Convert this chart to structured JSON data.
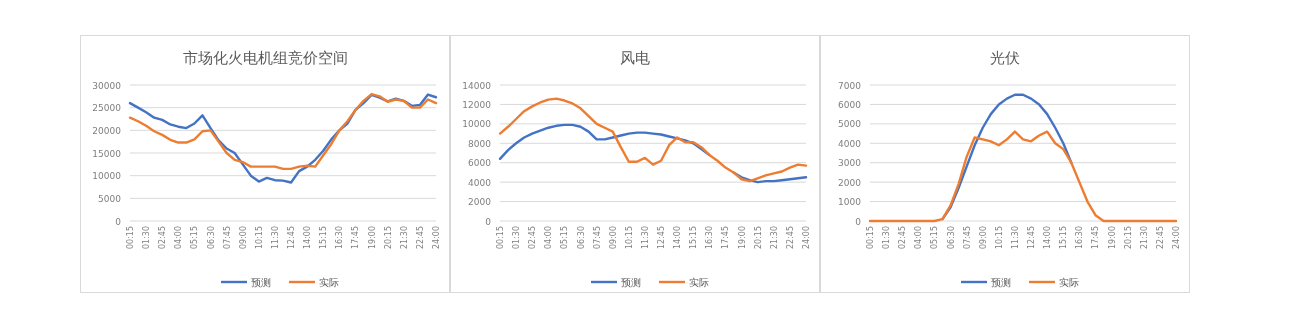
{
  "chart_data": [
    {
      "type": "line",
      "title": "市场化火电机组竞价空间",
      "x": [
        0.25,
        0.875,
        1.5,
        2.125,
        2.75,
        3.375,
        4,
        4.625,
        5.25,
        5.875,
        6.5,
        7.125,
        7.75,
        8.375,
        9,
        9.625,
        10.25,
        10.875,
        11.5,
        12.125,
        12.75,
        13.375,
        14,
        14.625,
        15.25,
        15.875,
        16.5,
        17.125,
        17.75,
        18.375,
        19,
        19.625,
        20.25,
        20.875,
        21.5,
        22.125,
        22.75,
        23.375,
        24
      ],
      "xlim": [
        0.25,
        24
      ],
      "xticks": [
        {
          "value": 0.25,
          "label": "00:15"
        },
        {
          "value": 1.5,
          "label": "01:30"
        },
        {
          "value": 2.75,
          "label": "02:45"
        },
        {
          "value": 4,
          "label": "04:00"
        },
        {
          "value": 5.25,
          "label": "05:15"
        },
        {
          "value": 6.5,
          "label": "06:30"
        },
        {
          "value": 7.75,
          "label": "07:45"
        },
        {
          "value": 9,
          "label": "09:00"
        },
        {
          "value": 10.25,
          "label": "10:15"
        },
        {
          "value": 11.5,
          "label": "11:30"
        },
        {
          "value": 12.75,
          "label": "12:45"
        },
        {
          "value": 14,
          "label": "14:00"
        },
        {
          "value": 15.25,
          "label": "15:15"
        },
        {
          "value": 16.5,
          "label": "16:30"
        },
        {
          "value": 17.75,
          "label": "17:45"
        },
        {
          "value": 19,
          "label": "19:00"
        },
        {
          "value": 20.25,
          "label": "20:15"
        },
        {
          "value": 21.5,
          "label": "21:30"
        },
        {
          "value": 22.75,
          "label": "22:45"
        },
        {
          "value": 24,
          "label": "24:00"
        }
      ],
      "ylim": [
        0,
        30000
      ],
      "yticks": [
        0,
        5000,
        10000,
        15000,
        20000,
        25000,
        30000
      ],
      "grid": "y",
      "legend": "bottom",
      "series": [
        {
          "name": "预测",
          "color": "#4472c4",
          "values": [
            26000,
            25000,
            24000,
            22800,
            22300,
            21300,
            20800,
            20500,
            21500,
            23300,
            20500,
            17800,
            16000,
            15000,
            12500,
            10000,
            8700,
            9500,
            9000,
            8900,
            8500,
            11000,
            12000,
            13500,
            15500,
            18000,
            20000,
            21500,
            24500,
            26000,
            27800,
            27200,
            26400,
            27000,
            26500,
            25400,
            25600,
            27900,
            27300
          ]
        },
        {
          "name": "实际",
          "color": "#ed7d31",
          "values": [
            22800,
            22000,
            21000,
            19800,
            19000,
            17900,
            17300,
            17300,
            18000,
            19800,
            20000,
            17500,
            15000,
            13500,
            13000,
            12000,
            12000,
            12000,
            12000,
            11500,
            11500,
            12000,
            12200,
            12000,
            14500,
            17000,
            20000,
            22000,
            24500,
            26500,
            28000,
            27500,
            26300,
            26800,
            26500,
            25000,
            25000,
            26800,
            26000
          ]
        }
      ]
    },
    {
      "type": "line",
      "title": "风电",
      "x": [
        0.25,
        0.875,
        1.5,
        2.125,
        2.75,
        3.375,
        4,
        4.625,
        5.25,
        5.875,
        6.5,
        7.125,
        7.75,
        8.375,
        9,
        9.625,
        10.25,
        10.875,
        11.5,
        12.125,
        12.75,
        13.375,
        14,
        14.625,
        15.25,
        15.875,
        16.5,
        17.125,
        17.75,
        18.375,
        19,
        19.625,
        20.25,
        20.875,
        21.5,
        22.125,
        22.75,
        23.375,
        24
      ],
      "xlim": [
        0.25,
        24
      ],
      "xticks": [
        {
          "value": 0.25,
          "label": "00:15"
        },
        {
          "value": 1.5,
          "label": "01:30"
        },
        {
          "value": 2.75,
          "label": "02:45"
        },
        {
          "value": 4,
          "label": "04:00"
        },
        {
          "value": 5.25,
          "label": "05:15"
        },
        {
          "value": 6.5,
          "label": "06:30"
        },
        {
          "value": 7.75,
          "label": "07:45"
        },
        {
          "value": 9,
          "label": "09:00"
        },
        {
          "value": 10.25,
          "label": "10:15"
        },
        {
          "value": 11.5,
          "label": "11:30"
        },
        {
          "value": 12.75,
          "label": "12:45"
        },
        {
          "value": 14,
          "label": "14:00"
        },
        {
          "value": 15.25,
          "label": "15:15"
        },
        {
          "value": 16.5,
          "label": "16:30"
        },
        {
          "value": 17.75,
          "label": "17:45"
        },
        {
          "value": 19,
          "label": "19:00"
        },
        {
          "value": 20.25,
          "label": "20:15"
        },
        {
          "value": 21.5,
          "label": "21:30"
        },
        {
          "value": 22.75,
          "label": "22:45"
        },
        {
          "value": 24,
          "label": "24:00"
        }
      ],
      "ylim": [
        0,
        14000
      ],
      "yticks": [
        0,
        2000,
        4000,
        6000,
        8000,
        10000,
        12000,
        14000
      ],
      "grid": "y",
      "legend": "bottom",
      "series": [
        {
          "name": "预测",
          "color": "#4472c4",
          "values": [
            6400,
            7300,
            8000,
            8600,
            9000,
            9300,
            9600,
            9800,
            9900,
            9900,
            9700,
            9200,
            8400,
            8400,
            8600,
            8800,
            9000,
            9100,
            9100,
            9000,
            8900,
            8700,
            8500,
            8300,
            8000,
            7400,
            6800,
            null,
            null,
            5000,
            4500,
            4200,
            4000,
            4100,
            4100,
            4200,
            4300,
            4400,
            4500
          ]
        },
        {
          "name": "实际",
          "color": "#ed7d31",
          "values": [
            9000,
            9700,
            10500,
            11300,
            11800,
            12200,
            12500,
            12600,
            12400,
            12100,
            11600,
            10800,
            10000,
            9600,
            9200,
            7600,
            6100,
            6100,
            6500,
            5800,
            6200,
            7800,
            8600,
            8100,
            8100,
            7600,
            6800,
            6200,
            5500,
            5000,
            4300,
            4100,
            4400,
            4700,
            4900,
            5100,
            5500,
            5800,
            5700
          ]
        }
      ]
    },
    {
      "type": "line",
      "title": "光伏",
      "x": [
        0.25,
        0.875,
        1.5,
        2.125,
        2.75,
        3.375,
        4,
        4.625,
        5.25,
        5.875,
        6.5,
        7.125,
        7.75,
        8.375,
        9,
        9.625,
        10.25,
        10.875,
        11.5,
        12.125,
        12.75,
        13.375,
        14,
        14.625,
        15.25,
        15.875,
        16.5,
        17.125,
        17.75,
        18.375,
        19,
        19.625,
        20.25,
        20.875,
        21.5,
        22.125,
        22.75,
        23.375,
        24
      ],
      "xlim": [
        0.25,
        24
      ],
      "xticks": [
        {
          "value": 0.25,
          "label": "00:15"
        },
        {
          "value": 1.5,
          "label": "01:30"
        },
        {
          "value": 2.75,
          "label": "02:45"
        },
        {
          "value": 4,
          "label": "04:00"
        },
        {
          "value": 5.25,
          "label": "05:15"
        },
        {
          "value": 6.5,
          "label": "06:30"
        },
        {
          "value": 7.75,
          "label": "07:45"
        },
        {
          "value": 9,
          "label": "09:00"
        },
        {
          "value": 10.25,
          "label": "10:15"
        },
        {
          "value": 11.5,
          "label": "11:30"
        },
        {
          "value": 12.75,
          "label": "12:45"
        },
        {
          "value": 14,
          "label": "14:00"
        },
        {
          "value": 15.25,
          "label": "15:15"
        },
        {
          "value": 16.5,
          "label": "16:30"
        },
        {
          "value": 17.75,
          "label": "17:45"
        },
        {
          "value": 19,
          "label": "19:00"
        },
        {
          "value": 20.25,
          "label": "20:15"
        },
        {
          "value": 21.5,
          "label": "21:30"
        },
        {
          "value": 22.75,
          "label": "22:45"
        },
        {
          "value": 24,
          "label": "24:00"
        }
      ],
      "ylim": [
        0,
        7000
      ],
      "yticks": [
        0,
        1000,
        2000,
        3000,
        4000,
        5000,
        6000,
        7000
      ],
      "grid": "y",
      "legend": "bottom",
      "series": [
        {
          "name": "预测",
          "color": "#4472c4",
          "values": [
            null,
            null,
            null,
            null,
            null,
            null,
            null,
            null,
            null,
            100,
            700,
            1700,
            2800,
            3900,
            4800,
            5500,
            6000,
            6300,
            6500,
            6500,
            6300,
            6000,
            5500,
            4800,
            4000,
            3000,
            null,
            null,
            null,
            null,
            null,
            null,
            null,
            null,
            null,
            null,
            null,
            null,
            null
          ]
        },
        {
          "name": "实际",
          "color": "#ed7d31",
          "values": [
            0,
            0,
            0,
            0,
            0,
            0,
            0,
            0,
            0,
            100,
            800,
            1900,
            3300,
            4300,
            4200,
            4100,
            3900,
            4200,
            4600,
            4200,
            4100,
            4400,
            4600,
            4000,
            3700,
            3000,
            2000,
            1000,
            300,
            0,
            0,
            0,
            0,
            0,
            0,
            0,
            0,
            0,
            0
          ]
        }
      ]
    }
  ]
}
